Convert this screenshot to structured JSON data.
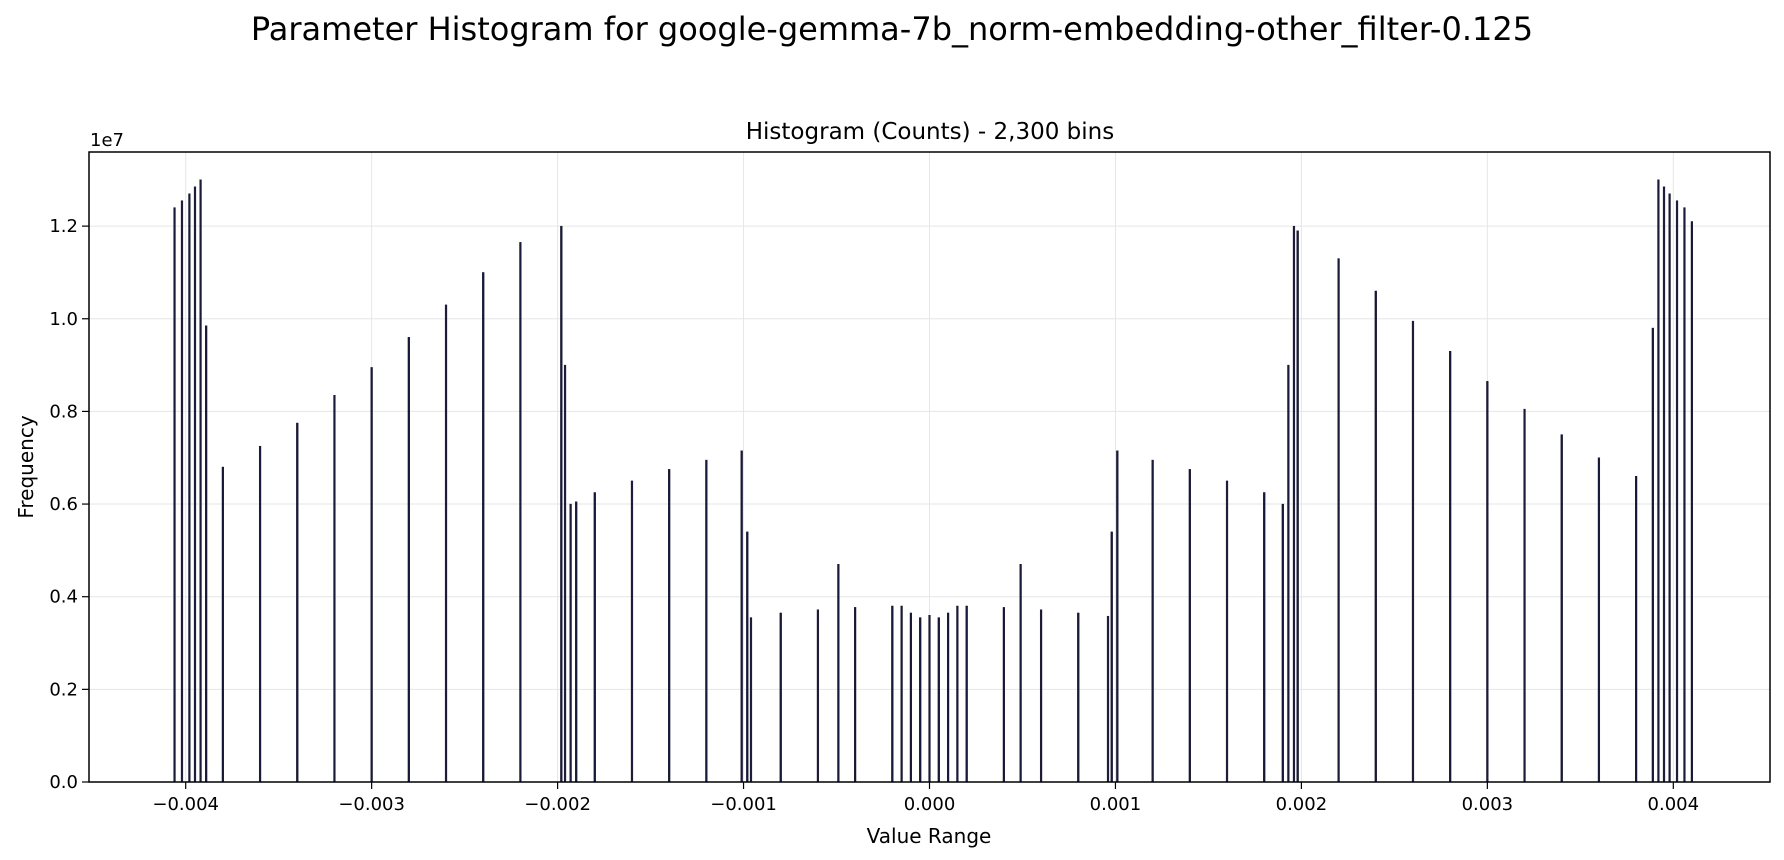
{
  "chart_data": {
    "type": "bar",
    "suptitle": "Parameter Histogram for google-gemma-7b_norm-embedding-other_filter-0.125",
    "title": "Histogram (Counts) - 2,300 bins",
    "xlabel": "Value Range",
    "ylabel": "Frequency",
    "y_offset_label": "1e7",
    "xlim": [
      -0.00452,
      0.00452
    ],
    "ylim": [
      0,
      13600000
    ],
    "x_ticks": [
      {
        "value": -0.004,
        "label": "−0.004"
      },
      {
        "value": -0.003,
        "label": "−0.003"
      },
      {
        "value": -0.002,
        "label": "−0.002"
      },
      {
        "value": -0.001,
        "label": "−0.001"
      },
      {
        "value": 0.0,
        "label": "0.000"
      },
      {
        "value": 0.001,
        "label": "0.001"
      },
      {
        "value": 0.002,
        "label": "0.002"
      },
      {
        "value": 0.003,
        "label": "0.003"
      },
      {
        "value": 0.004,
        "label": "0.004"
      }
    ],
    "y_ticks": [
      {
        "value": 0,
        "label": "0.0"
      },
      {
        "value": 2000000,
        "label": "0.2"
      },
      {
        "value": 4000000,
        "label": "0.4"
      },
      {
        "value": 6000000,
        "label": "0.6"
      },
      {
        "value": 8000000,
        "label": "0.8"
      },
      {
        "value": 10000000,
        "label": "1.0"
      },
      {
        "value": 12000000,
        "label": "1.2"
      }
    ],
    "grid": true,
    "bar_color": "#1a1a3a",
    "edge_color": "#0a0a26",
    "x": [
      -0.00406,
      -0.00402,
      -0.00398,
      -0.00395,
      -0.00392,
      -0.00389,
      -0.0038,
      -0.0036,
      -0.0034,
      -0.0032,
      -0.003,
      -0.0028,
      -0.0026,
      -0.0024,
      -0.0022,
      -0.00198,
      -0.00196,
      -0.00193,
      -0.0019,
      -0.0018,
      -0.0016,
      -0.0014,
      -0.0012,
      -0.00101,
      -0.00098,
      -0.00096,
      -0.0008,
      -0.0006,
      -0.0004,
      -0.0002,
      -0.00049,
      -0.00015,
      -0.0001,
      -5e-05,
      0.0,
      5e-05,
      0.0001,
      0.00015,
      0.00049,
      0.0002,
      0.0004,
      0.0006,
      0.0008,
      0.00096,
      0.00098,
      0.00101,
      0.0012,
      0.0014,
      0.0016,
      0.0018,
      0.0019,
      0.00193,
      0.00196,
      0.00198,
      0.0022,
      0.0024,
      0.0026,
      0.0028,
      0.003,
      0.0032,
      0.0034,
      0.0036,
      0.0038,
      0.00389,
      0.00392,
      0.00395,
      0.00398,
      0.00402,
      0.00406,
      0.0041
    ],
    "values": [
      12400000,
      12550000,
      12700000,
      12850000,
      13000000,
      9850000,
      6800000,
      7250000,
      7750000,
      8350000,
      8950000,
      9600000,
      10300000,
      11000000,
      11650000,
      12000000,
      9000000,
      6000000,
      6050000,
      6250000,
      6500000,
      6750000,
      6950000,
      7150000,
      5400000,
      3550000,
      3650000,
      3720000,
      3770000,
      3800000,
      4700000,
      3800000,
      3650000,
      3550000,
      3600000,
      3550000,
      3650000,
      3800000,
      4700000,
      3800000,
      3770000,
      3720000,
      3650000,
      3580000,
      5400000,
      7150000,
      6950000,
      6750000,
      6500000,
      6250000,
      6000000,
      9000000,
      12000000,
      11900000,
      11300000,
      10600000,
      9950000,
      9300000,
      8650000,
      8050000,
      7500000,
      7000000,
      6600000,
      9800000,
      13000000,
      12850000,
      12700000,
      12550000,
      12400000,
      12100000
    ]
  }
}
